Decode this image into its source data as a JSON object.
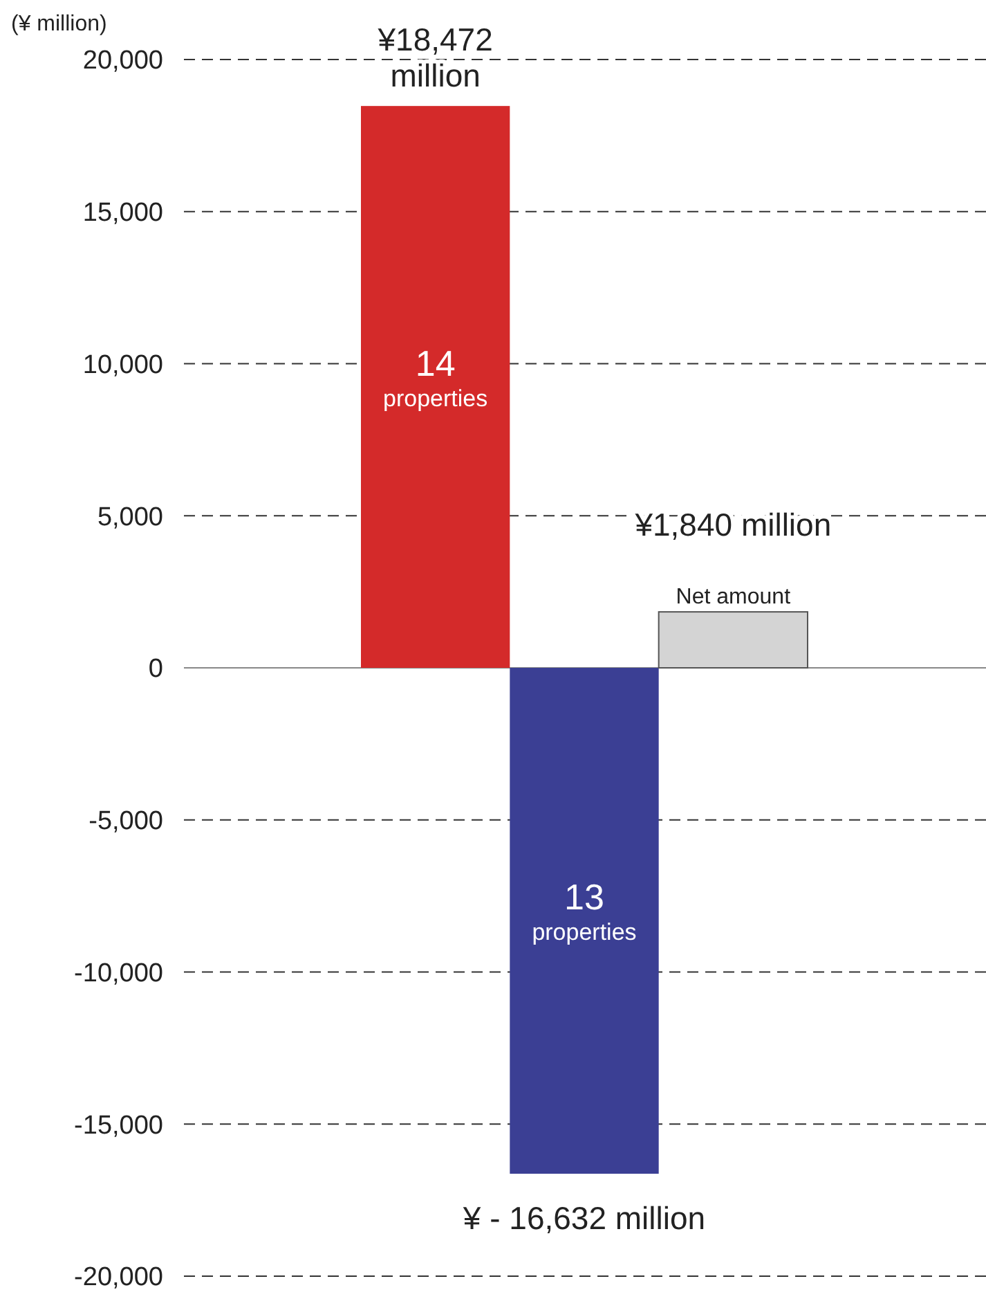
{
  "chart_data": {
    "type": "bar",
    "ylabel": "(¥ million)",
    "categories": [
      null,
      null,
      null
    ],
    "values": [
      18472,
      -16632,
      1840
    ],
    "colors": [
      "#d42a2a",
      "#3b3f94",
      "#d4d4d4"
    ],
    "value_labels": [
      "¥18,472 million",
      "¥ - 16,632 million",
      "¥1,840 million"
    ],
    "annotations": [
      "14\nproperties",
      "13\nproperties",
      "Net amount"
    ],
    "ylim": [
      -20000,
      20000
    ],
    "yticks": [
      {
        "value": -20000,
        "label": "-20,000"
      },
      {
        "value": -15000,
        "label": "-15,000"
      },
      {
        "value": -10000,
        "label": "-10,000"
      },
      {
        "value": -5000,
        "label": "-5,000"
      },
      0,
      {
        "value": 5000,
        "label": "5,000"
      },
      {
        "value": 10000,
        "label": "10,000"
      },
      {
        "value": 15000,
        "label": "15,000"
      },
      {
        "value": 20000,
        "label": "20,000"
      }
    ],
    "grid": "y"
  }
}
